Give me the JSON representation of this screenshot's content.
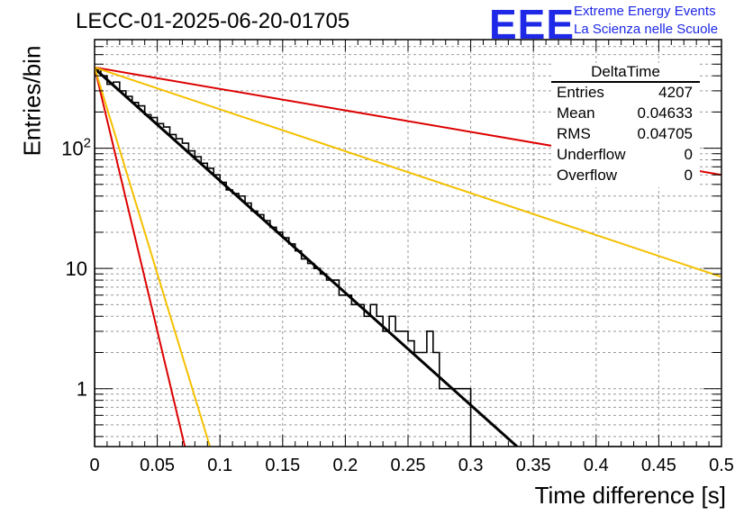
{
  "header": {
    "title": "LECC-01-2025-06-20-01705",
    "logo_text": "EEE",
    "logo_line1": "Extreme Energy Events",
    "logo_line2": "La Scienza nelle Scuole"
  },
  "stats": {
    "title": "DeltaTime",
    "rows": [
      {
        "key": "Entries",
        "value": "4207"
      },
      {
        "key": "Mean",
        "value": "0.04633"
      },
      {
        "key": "RMS",
        "value": "0.04705"
      },
      {
        "key": "Underflow",
        "value": "0"
      },
      {
        "key": "Overflow",
        "value": "0"
      }
    ]
  },
  "colors": {
    "histogram": "#000000",
    "fit": "#000000",
    "bound_outer": "#dd0000",
    "bound_inner": "#f5c000",
    "grid": "#999999",
    "logo": "#1e28e6"
  },
  "chart_data": {
    "type": "histogram",
    "title": "LECC-01-2025-06-20-01705",
    "xlabel": "Time difference [s]",
    "ylabel": "Entries/bin",
    "xlim": [
      0,
      0.5
    ],
    "ylim": [
      0.33,
      800
    ],
    "yscale": "log",
    "grid": true,
    "xticks": [
      0,
      0.05,
      0.1,
      0.15,
      0.2,
      0.25,
      0.3,
      0.35,
      0.4,
      0.45,
      0.5
    ],
    "xtick_labels": [
      "0",
      "0.05",
      "0.1",
      "0.15",
      "0.2",
      "0.25",
      "0.3",
      "0.35",
      "0.4",
      "0.45",
      "0.5"
    ],
    "yticks": [
      1,
      10,
      100
    ],
    "ytick_labels": [
      "1",
      "10",
      "10<sup>2</sup>"
    ],
    "bin_width": 0.005,
    "bin_counts": [
      450,
      400,
      340,
      355,
      300,
      270,
      240,
      225,
      190,
      180,
      160,
      150,
      130,
      120,
      110,
      95,
      85,
      75,
      68,
      60,
      52,
      45,
      42,
      40,
      35,
      30,
      28,
      25,
      22,
      20,
      18,
      16,
      14,
      12,
      11,
      10,
      9,
      8,
      8,
      6,
      6,
      5,
      5,
      4,
      5,
      4,
      3,
      4,
      3,
      3,
      2.5,
      2,
      2,
      3,
      2,
      1,
      1,
      1,
      1,
      1,
      0,
      0,
      0,
      0,
      0,
      0,
      0,
      0,
      0,
      0,
      0,
      0,
      0,
      0,
      0,
      0,
      0,
      0,
      0,
      0,
      0,
      0,
      0,
      0,
      0,
      0,
      0,
      0,
      0,
      0,
      0,
      0,
      0,
      0,
      0,
      0,
      0,
      0,
      0,
      0
    ],
    "curves": [
      {
        "style": "fit",
        "x0": 0,
        "y0": 460,
        "x1": 0.337,
        "y1": 0.33
      },
      {
        "style": "bound_outer",
        "x0": 0,
        "y0": 470,
        "x1": 0.5,
        "y1": 60
      },
      {
        "style": "bound_inner",
        "x0": 0,
        "y0": 470,
        "x1": 0.5,
        "y1": 8.5
      },
      {
        "style": "bound_outer",
        "x0": 0,
        "y0": 470,
        "x1": 0.072,
        "y1": 0.33
      },
      {
        "style": "bound_inner",
        "x0": 0,
        "y0": 470,
        "x1": 0.092,
        "y1": 0.33
      }
    ]
  }
}
